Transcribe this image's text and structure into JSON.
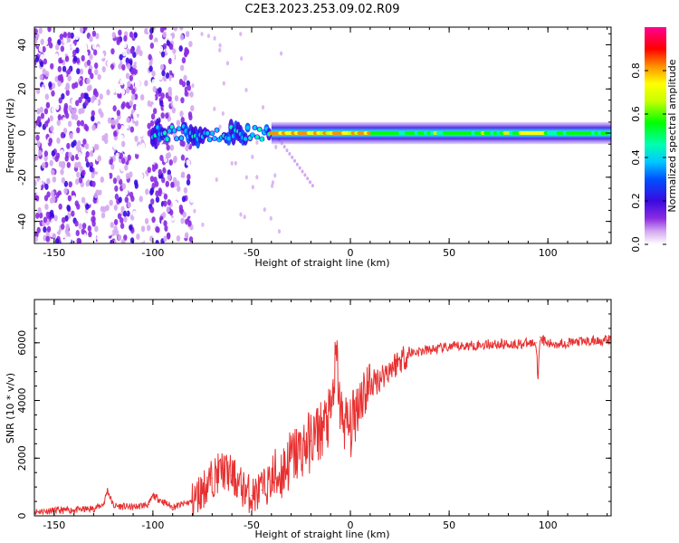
{
  "chart_data": [
    {
      "type": "heatmap",
      "title": "C2E3.2023.253.09.02.R09",
      "xlabel": "Height of straight line (km)",
      "ylabel": "Frequency (Hz)",
      "xlim": [
        -160,
        132
      ],
      "ylim": [
        -50,
        48
      ],
      "xticks": [
        "-150",
        "-100",
        "-50",
        "0",
        "50",
        "100"
      ],
      "yticks": [
        "-40",
        "-20",
        "0",
        "20",
        "40"
      ],
      "colorbar": {
        "label": "Normalized spectral amplitude",
        "range": [
          0,
          1
        ],
        "ticks": [
          "0.0",
          "0.2",
          "0.4",
          "0.6",
          "0.8"
        ]
      },
      "band": {
        "center_freq_hz": 0,
        "note": "coherent narrow band near 0 Hz from about -80 km upward; scattered weak returns at heights below -80 km"
      }
    },
    {
      "type": "line",
      "xlabel": "Height of straight line (km)",
      "ylabel": "SNR (10 * v/v)",
      "xlim": [
        -160,
        132
      ],
      "ylim": [
        0,
        7500
      ],
      "xticks": [
        "-150",
        "-100",
        "-50",
        "0",
        "50",
        "100"
      ],
      "yticks": [
        "0",
        "2000",
        "4000",
        "6000"
      ],
      "color": "#e83030",
      "series": [
        {
          "x": [
            -160,
            -150,
            -140,
            -130,
            -125,
            -123,
            -120,
            -110,
            -102,
            -100,
            -90,
            -80,
            -75,
            -70,
            -65,
            -60,
            -55,
            -50,
            -45,
            -40,
            -35,
            -30,
            -25,
            -20,
            -15,
            -10,
            -7,
            -5,
            0,
            5,
            10,
            15,
            20,
            25,
            30,
            40,
            50,
            60,
            70,
            80,
            90,
            94,
            95,
            96,
            100,
            110,
            120,
            132
          ],
          "y": [
            150,
            180,
            200,
            250,
            400,
            900,
            350,
            300,
            400,
            700,
            300,
            500,
            900,
            1300,
            1600,
            1400,
            1000,
            700,
            900,
            1200,
            1500,
            2000,
            2300,
            2600,
            3000,
            3400,
            5500,
            3500,
            3000,
            4200,
            4500,
            4800,
            5100,
            5400,
            5650,
            5750,
            5850,
            5900,
            5950,
            5950,
            5980,
            6000,
            4800,
            6200,
            5950,
            6000,
            6050,
            6100
          ]
        }
      ]
    }
  ]
}
